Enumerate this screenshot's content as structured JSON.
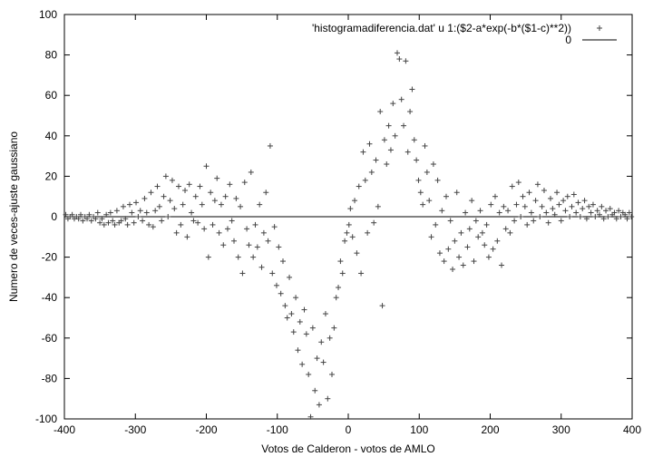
{
  "chart_data": {
    "type": "scatter",
    "title": "",
    "xlabel": "Votos de Calderon - votos de AMLO",
    "ylabel": "Numero de veces-ajuste gaussiano",
    "xlim": [
      -400,
      400
    ],
    "ylim": [
      -100,
      100
    ],
    "x_ticks": [
      -400,
      -300,
      -200,
      -100,
      0,
      100,
      200,
      300,
      400
    ],
    "y_ticks": [
      -100,
      -80,
      -60,
      -40,
      -20,
      0,
      20,
      40,
      60,
      80,
      100
    ],
    "grid": false,
    "legend_position": "top-right",
    "colors": {
      "points": "#444444",
      "line": "#000000",
      "axes": "#000000"
    },
    "series": [
      {
        "name": "'histogramadiferencia.dat' u 1:($2-a*exp(-b*($1-c)**2))",
        "marker": "plus",
        "points": [
          [
            -398,
            1
          ],
          [
            -395,
            -1
          ],
          [
            -392,
            0
          ],
          [
            -389,
            1
          ],
          [
            -386,
            -1
          ],
          [
            -383,
            0
          ],
          [
            -380,
            -1
          ],
          [
            -377,
            1
          ],
          [
            -374,
            -2
          ],
          [
            -371,
            0
          ],
          [
            -368,
            -1
          ],
          [
            -365,
            1
          ],
          [
            -362,
            -2
          ],
          [
            -359,
            0
          ],
          [
            -356,
            -1
          ],
          [
            -353,
            2
          ],
          [
            -350,
            -3
          ],
          [
            -347,
            -1
          ],
          [
            -344,
            -4
          ],
          [
            -341,
            1
          ],
          [
            -338,
            -3
          ],
          [
            -335,
            2
          ],
          [
            -332,
            -2
          ],
          [
            -329,
            -4
          ],
          [
            -326,
            3
          ],
          [
            -323,
            -3
          ],
          [
            -320,
            -2
          ],
          [
            -317,
            5
          ],
          [
            -314,
            -1
          ],
          [
            -311,
            -4
          ],
          [
            -308,
            6
          ],
          [
            -305,
            2
          ],
          [
            -302,
            -3
          ],
          [
            -299,
            7
          ],
          [
            -296,
            0
          ],
          [
            -293,
            3
          ],
          [
            -290,
            -2
          ],
          [
            -287,
            9
          ],
          [
            -284,
            2
          ],
          [
            -281,
            -4
          ],
          [
            -278,
            12
          ],
          [
            -275,
            -5
          ],
          [
            -272,
            3
          ],
          [
            -269,
            15
          ],
          [
            -266,
            5
          ],
          [
            -263,
            -2
          ],
          [
            -260,
            10
          ],
          [
            -257,
            20
          ],
          [
            -254,
            0
          ],
          [
            -251,
            8
          ],
          [
            -248,
            18
          ],
          [
            -245,
            4
          ],
          [
            -242,
            -8
          ],
          [
            -239,
            15
          ],
          [
            -236,
            -4
          ],
          [
            -233,
            6
          ],
          [
            -230,
            13
          ],
          [
            -227,
            -10
          ],
          [
            -224,
            16
          ],
          [
            -221,
            2
          ],
          [
            -218,
            -2
          ],
          [
            -215,
            10
          ],
          [
            -212,
            -3
          ],
          [
            -209,
            15
          ],
          [
            -206,
            6
          ],
          [
            -203,
            -6
          ],
          [
            -200,
            25
          ],
          [
            -197,
            -20
          ],
          [
            -194,
            12
          ],
          [
            -191,
            -4
          ],
          [
            -188,
            8
          ],
          [
            -185,
            19
          ],
          [
            -182,
            -8
          ],
          [
            -179,
            6
          ],
          [
            -176,
            -14
          ],
          [
            -173,
            10
          ],
          [
            -170,
            -6
          ],
          [
            -167,
            16
          ],
          [
            -164,
            -2
          ],
          [
            -161,
            -12
          ],
          [
            -158,
            9
          ],
          [
            -155,
            -20
          ],
          [
            -152,
            5
          ],
          [
            -149,
            -28
          ],
          [
            -146,
            17
          ],
          [
            -143,
            -6
          ],
          [
            -140,
            -14
          ],
          [
            -137,
            22
          ],
          [
            -134,
            -20
          ],
          [
            -131,
            -4
          ],
          [
            -128,
            -15
          ],
          [
            -125,
            6
          ],
          [
            -122,
            -25
          ],
          [
            -119,
            -8
          ],
          [
            -116,
            12
          ],
          [
            -113,
            -12
          ],
          [
            -110,
            35
          ],
          [
            -107,
            -28
          ],
          [
            -104,
            -5
          ],
          [
            -101,
            -34
          ],
          [
            -98,
            -15
          ],
          [
            -95,
            -38
          ],
          [
            -92,
            -22
          ],
          [
            -89,
            -44
          ],
          [
            -86,
            -50
          ],
          [
            -83,
            -30
          ],
          [
            -80,
            -48
          ],
          [
            -77,
            -57
          ],
          [
            -74,
            -40
          ],
          [
            -71,
            -66
          ],
          [
            -68,
            -52
          ],
          [
            -65,
            -73
          ],
          [
            -62,
            -46
          ],
          [
            -59,
            -58
          ],
          [
            -56,
            -78
          ],
          [
            -53,
            -99
          ],
          [
            -50,
            -55
          ],
          [
            -47,
            -86
          ],
          [
            -44,
            -70
          ],
          [
            -41,
            -93
          ],
          [
            -38,
            -62
          ],
          [
            -35,
            -72
          ],
          [
            -32,
            -48
          ],
          [
            -29,
            -90
          ],
          [
            -26,
            -60
          ],
          [
            -23,
            -78
          ],
          [
            -20,
            -55
          ],
          [
            -17,
            -40
          ],
          [
            -14,
            -35
          ],
          [
            -11,
            -22
          ],
          [
            -8,
            -28
          ],
          [
            -5,
            -12
          ],
          [
            -2,
            -8
          ],
          [
            1,
            -4
          ],
          [
            3,
            4
          ],
          [
            6,
            -10
          ],
          [
            9,
            8
          ],
          [
            12,
            -18
          ],
          [
            15,
            15
          ],
          [
            18,
            -28
          ],
          [
            21,
            32
          ],
          [
            24,
            18
          ],
          [
            27,
            -8
          ],
          [
            30,
            36
          ],
          [
            33,
            22
          ],
          [
            36,
            -3
          ],
          [
            39,
            28
          ],
          [
            42,
            5
          ],
          [
            45,
            52
          ],
          [
            48,
            -44
          ],
          [
            51,
            38
          ],
          [
            54,
            26
          ],
          [
            57,
            45
          ],
          [
            60,
            33
          ],
          [
            63,
            56
          ],
          [
            66,
            40
          ],
          [
            69,
            81
          ],
          [
            72,
            78
          ],
          [
            75,
            58
          ],
          [
            78,
            45
          ],
          [
            81,
            77
          ],
          [
            84,
            32
          ],
          [
            87,
            52
          ],
          [
            90,
            63
          ],
          [
            93,
            38
          ],
          [
            96,
            28
          ],
          [
            99,
            18
          ],
          [
            102,
            12
          ],
          [
            105,
            6
          ],
          [
            108,
            35
          ],
          [
            111,
            22
          ],
          [
            114,
            8
          ],
          [
            117,
            -10
          ],
          [
            120,
            26
          ],
          [
            123,
            -4
          ],
          [
            126,
            18
          ],
          [
            129,
            -18
          ],
          [
            132,
            3
          ],
          [
            135,
            -22
          ],
          [
            138,
            10
          ],
          [
            141,
            -16
          ],
          [
            144,
            -2
          ],
          [
            147,
            -26
          ],
          [
            150,
            -12
          ],
          [
            153,
            12
          ],
          [
            156,
            -20
          ],
          [
            159,
            -8
          ],
          [
            162,
            -24
          ],
          [
            165,
            2
          ],
          [
            168,
            -15
          ],
          [
            171,
            -6
          ],
          [
            174,
            8
          ],
          [
            177,
            -22
          ],
          [
            180,
            -2
          ],
          [
            183,
            -10
          ],
          [
            186,
            3
          ],
          [
            189,
            -8
          ],
          [
            192,
            -14
          ],
          [
            195,
            -4
          ],
          [
            198,
            -20
          ],
          [
            201,
            6
          ],
          [
            204,
            -16
          ],
          [
            207,
            10
          ],
          [
            210,
            -12
          ],
          [
            213,
            2
          ],
          [
            216,
            -24
          ],
          [
            219,
            5
          ],
          [
            222,
            -6
          ],
          [
            225,
            3
          ],
          [
            228,
            -8
          ],
          [
            231,
            15
          ],
          [
            234,
            -2
          ],
          [
            237,
            6
          ],
          [
            240,
            17
          ],
          [
            243,
            0
          ],
          [
            246,
            10
          ],
          [
            249,
            5
          ],
          [
            252,
            -4
          ],
          [
            255,
            12
          ],
          [
            258,
            2
          ],
          [
            261,
            -2
          ],
          [
            264,
            8
          ],
          [
            267,
            16
          ],
          [
            270,
            0
          ],
          [
            273,
            5
          ],
          [
            276,
            13
          ],
          [
            279,
            2
          ],
          [
            282,
            -3
          ],
          [
            285,
            9
          ],
          [
            288,
            4
          ],
          [
            291,
            1
          ],
          [
            294,
            12
          ],
          [
            297,
            6
          ],
          [
            300,
            -2
          ],
          [
            303,
            8
          ],
          [
            306,
            3
          ],
          [
            309,
            10
          ],
          [
            312,
            0
          ],
          [
            315,
            5
          ],
          [
            318,
            11
          ],
          [
            321,
            2
          ],
          [
            324,
            7
          ],
          [
            327,
            0
          ],
          [
            330,
            4
          ],
          [
            333,
            8
          ],
          [
            336,
            -1
          ],
          [
            339,
            5
          ],
          [
            342,
            2
          ],
          [
            345,
            6
          ],
          [
            348,
            0
          ],
          [
            351,
            3
          ],
          [
            354,
            1
          ],
          [
            357,
            5
          ],
          [
            360,
            -1
          ],
          [
            363,
            3
          ],
          [
            366,
            0
          ],
          [
            369,
            4
          ],
          [
            372,
            1
          ],
          [
            375,
            2
          ],
          [
            378,
            -1
          ],
          [
            381,
            3
          ],
          [
            384,
            0
          ],
          [
            387,
            2
          ],
          [
            390,
            1
          ],
          [
            393,
            -1
          ],
          [
            396,
            2
          ],
          [
            399,
            0
          ]
        ]
      },
      {
        "name": "0",
        "line_y": 0
      }
    ]
  }
}
